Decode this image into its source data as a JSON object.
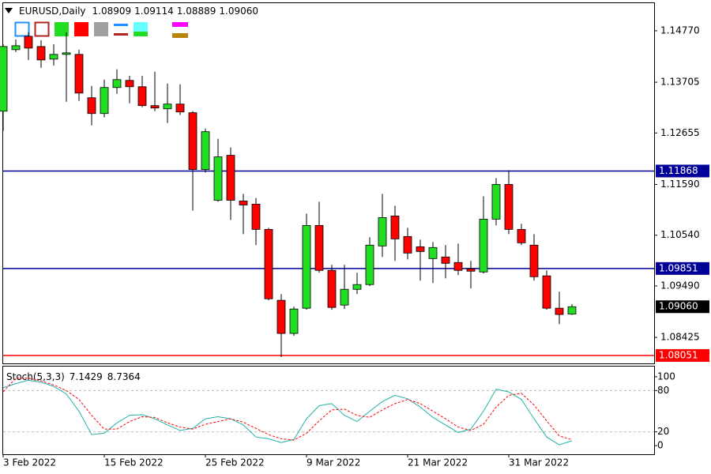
{
  "chart_data": [
    {
      "type": "candlestick",
      "title": "EURUSD,Daily",
      "last_quote_labels": [
        "1.08909",
        "1.09114",
        "1.08889",
        "1.09060"
      ],
      "categories": [
        "3 Feb 2022",
        null,
        null,
        null,
        null,
        null,
        null,
        null,
        "15 Feb 2022",
        null,
        null,
        null,
        null,
        null,
        null,
        null,
        "25 Feb 2022",
        null,
        null,
        null,
        null,
        null,
        null,
        null,
        "9 Mar 2022",
        null,
        null,
        null,
        null,
        null,
        null,
        null,
        "21 Mar 2022",
        null,
        null,
        null,
        null,
        null,
        null,
        null,
        "31 Mar 2022",
        null,
        null,
        null,
        null,
        null
      ],
      "open": [
        1.13106,
        1.14379,
        1.14656,
        1.14444,
        1.14183,
        1.14281,
        1.14281,
        1.13384,
        1.13057,
        1.13596,
        1.13743,
        1.13612,
        1.13221,
        1.13155,
        1.13253,
        1.13074,
        1.11899,
        1.11263,
        1.12193,
        1.11247,
        1.11182,
        1.1066,
        1.09192,
        1.08507,
        1.09029,
        1.10741,
        1.09812,
        1.09094,
        1.0942,
        1.09518,
        1.10317,
        1.10937,
        1.10513,
        1.10301,
        1.10056,
        1.10089,
        1.09975,
        1.09844,
        1.09779,
        1.10872,
        1.1159,
        1.1066,
        1.10334,
        1.09698,
        1.09029,
        1.08909
      ],
      "high": [
        1.14493,
        1.1459,
        1.14737,
        1.14574,
        1.14493,
        1.14737,
        1.14379,
        1.13628,
        1.13759,
        1.13971,
        1.1384,
        1.1384,
        1.13922,
        1.13677,
        1.13661,
        1.13106,
        1.12748,
        1.12536,
        1.12356,
        1.11394,
        1.11312,
        1.10692,
        1.09322,
        1.09061,
        1.10986,
        1.11231,
        1.09926,
        1.09926,
        1.09763,
        1.10497,
        1.11394,
        1.11149,
        1.10692,
        1.10448,
        1.10399,
        1.10334,
        1.10366,
        1.10007,
        1.11345,
        1.1172,
        1.11883,
        1.10774,
        1.10562,
        1.09812,
        1.09371,
        1.09114
      ],
      "low": [
        1.12699,
        1.1433,
        1.14166,
        1.14003,
        1.14052,
        1.13302,
        1.13318,
        1.12813,
        1.12976,
        1.13465,
        1.13269,
        1.13188,
        1.13106,
        1.12862,
        1.13025,
        1.11051,
        1.11834,
        1.11231,
        1.10856,
        1.10562,
        1.10334,
        1.09192,
        1.08017,
        1.08458,
        1.08996,
        1.09763,
        1.08996,
        1.09012,
        1.09322,
        1.09486,
        1.10089,
        1.10007,
        1.1004,
        1.096,
        1.09551,
        1.09649,
        1.09714,
        1.09437,
        1.09746,
        1.10741,
        1.10562,
        1.10334,
        1.096,
        1.08996,
        1.08703,
        1.08889
      ],
      "close": [
        1.14444,
        1.1446,
        1.14411,
        1.14166,
        1.14281,
        1.14313,
        1.13481,
        1.13057,
        1.13596,
        1.13759,
        1.13612,
        1.13221,
        1.13172,
        1.13253,
        1.1309,
        1.11899,
        1.12682,
        1.1216,
        1.11263,
        1.11165,
        1.1066,
        1.09224,
        1.08507,
        1.09012,
        1.10741,
        1.09812,
        1.09045,
        1.0942,
        1.09518,
        1.10334,
        1.10904,
        1.10464,
        1.1017,
        1.10203,
        1.10285,
        1.09958,
        1.09812,
        1.09795,
        1.10872,
        1.1159,
        1.1066,
        1.10383,
        1.09681,
        1.09029,
        1.08899,
        1.0906
      ],
      "up_color": "#22dd22",
      "down_color": "#ff0000",
      "ylim": [
        1.07887,
        1.15341
      ],
      "yticks": [
        {
          "value": 1.1477,
          "label": "1.14770"
        },
        1.13705,
        1.12655,
        {
          "value": 1.1159,
          "label": "1.11590"
        },
        {
          "value": 1.1054,
          "label": "1.10540"
        },
        {
          "value": 1.0949,
          "label": "1.09490"
        },
        1.08425
      ],
      "hlines": [
        {
          "value": 1.11868,
          "color": "#000099"
        },
        {
          "value": 1.09851,
          "color": "#000099"
        },
        {
          "value": 1.08051,
          "color": "#ff0000"
        }
      ],
      "last_price": {
        "value": 1.0906,
        "label": "1.09060"
      }
    },
    {
      "type": "line",
      "title": "Stoch(5,3,3)",
      "series": [
        {
          "color": "#20b2aa",
          "style": "solid",
          "values": [
            84,
            90,
            95,
            92,
            86,
            75,
            50,
            16,
            18,
            33,
            44,
            45,
            39,
            30,
            22,
            25,
            39,
            42,
            39,
            30,
            12.5,
            10,
            4.5,
            9,
            39,
            58,
            61,
            44,
            35,
            50,
            64,
            73,
            68,
            56,
            41,
            30,
            19,
            24,
            50,
            82,
            78,
            67,
            39,
            12.5,
            1.2,
            7.1429
          ]
        },
        {
          "color": "#ff0000",
          "style": "dashed",
          "values": [
            78,
            98,
            98,
            94,
            88,
            80,
            67,
            44,
            24,
            24,
            35,
            42,
            41,
            33,
            27,
            24,
            31,
            35,
            39,
            34,
            25,
            16,
            10,
            8,
            18,
            36,
            52,
            53,
            44,
            41,
            52,
            61,
            67,
            61,
            50,
            39,
            27,
            22,
            31,
            56,
            73,
            76,
            59,
            36,
            14,
            8.7364
          ]
        }
      ],
      "ylim": [
        -12.5,
        114.8
      ],
      "yticks": [
        100,
        80,
        20,
        0
      ],
      "levels": [
        80,
        20
      ]
    }
  ]
}
